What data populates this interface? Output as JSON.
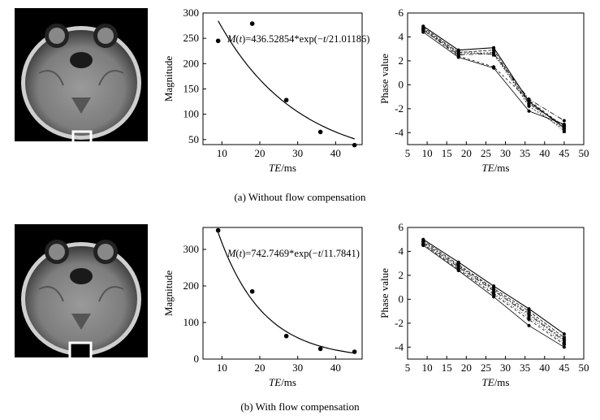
{
  "captions": {
    "a": "(a) Without flow compensation",
    "b": "(b) With flow compensation"
  },
  "chart_data": [
    {
      "id": "a-magnitude",
      "type": "scatter",
      "title": "",
      "xlabel_italic": "TE",
      "xlabel_unit": "/ms",
      "ylabel": "Magnitude",
      "xlim": [
        5,
        47
      ],
      "ylim": [
        40,
        300
      ],
      "xticks": [
        10,
        20,
        30,
        40
      ],
      "yticks": [
        50,
        100,
        150,
        200,
        250,
        300
      ],
      "points": [
        [
          9,
          245
        ],
        [
          18,
          279
        ],
        [
          27,
          128
        ],
        [
          36,
          65
        ],
        [
          45,
          39
        ]
      ],
      "fit": {
        "type": "exp",
        "amplitude": 436.52854,
        "tau": 21.01186,
        "x_from": 9,
        "x_to": 45
      },
      "equation": {
        "prefix": "M",
        "var1": "t",
        "middle": ")=436.52854*exp(−",
        "var2": "t",
        "suffix": "/21.01186)"
      }
    },
    {
      "id": "a-phase",
      "type": "line",
      "title": "",
      "xlabel_italic": "TE",
      "xlabel_unit": "/ms",
      "ylabel": "Phase value",
      "xlim": [
        5,
        50
      ],
      "ylim": [
        -5,
        6
      ],
      "xticks": [
        5,
        10,
        15,
        20,
        25,
        30,
        35,
        40,
        45,
        50
      ],
      "yticks": [
        -4,
        -2,
        0,
        2,
        4,
        6
      ],
      "x": [
        9,
        18,
        27,
        36,
        45
      ],
      "series": [
        {
          "name": "s1",
          "values": [
            4.9,
            2.9,
            3.1,
            -1.4,
            -3.6
          ]
        },
        {
          "name": "s2",
          "values": [
            4.8,
            2.7,
            2.9,
            -1.6,
            -3.4
          ]
        },
        {
          "name": "s3",
          "values": [
            4.7,
            2.6,
            2.7,
            -1.8,
            -3.7
          ]
        },
        {
          "name": "s4",
          "values": [
            4.6,
            2.5,
            2.6,
            -1.2,
            -3.0
          ]
        },
        {
          "name": "s5",
          "values": [
            4.5,
            2.8,
            2.5,
            -1.5,
            -3.9
          ]
        },
        {
          "name": "s6",
          "values": [
            4.6,
            2.4,
            1.5,
            -1.3,
            -3.5
          ]
        },
        {
          "name": "s7",
          "values": [
            4.4,
            2.3,
            1.4,
            -2.2,
            -3.3
          ]
        }
      ]
    },
    {
      "id": "b-magnitude",
      "type": "scatter",
      "title": "",
      "xlabel_italic": "TE",
      "xlabel_unit": "/ms",
      "ylabel": "Magnitude",
      "xlim": [
        5,
        47
      ],
      "ylim": [
        0,
        360
      ],
      "xticks": [
        10,
        20,
        30,
        40
      ],
      "yticks": [
        0,
        100,
        200,
        300
      ],
      "points": [
        [
          9,
          352
        ],
        [
          18,
          185
        ],
        [
          27,
          63
        ],
        [
          36,
          28
        ],
        [
          45,
          20
        ]
      ],
      "fit": {
        "type": "exp",
        "amplitude": 742.7469,
        "tau": 11.7841,
        "x_from": 9,
        "x_to": 45
      },
      "equation": {
        "prefix": "M",
        "var1": "t",
        "middle": ")=742.7469*exp(−",
        "var2": "t",
        "suffix": "/11.7841)"
      }
    },
    {
      "id": "b-phase",
      "type": "line",
      "title": "",
      "xlabel_italic": "TE",
      "xlabel_unit": "/ms",
      "ylabel": "Phase value",
      "xlim": [
        5,
        50
      ],
      "ylim": [
        -5,
        6
      ],
      "xticks": [
        5,
        10,
        15,
        20,
        25,
        30,
        35,
        40,
        45,
        50
      ],
      "yticks": [
        -4,
        -2,
        0,
        2,
        4,
        6
      ],
      "x": [
        9,
        18,
        27,
        36,
        45
      ],
      "series": [
        {
          "name": "s1",
          "values": [
            5.0,
            3.1,
            1.1,
            -0.8,
            -2.9
          ]
        },
        {
          "name": "s2",
          "values": [
            4.9,
            2.9,
            0.9,
            -1.0,
            -3.2
          ]
        },
        {
          "name": "s3",
          "values": [
            4.8,
            2.8,
            0.8,
            -1.2,
            -3.4
          ]
        },
        {
          "name": "s4",
          "values": [
            4.7,
            2.7,
            0.7,
            -1.3,
            -3.5
          ]
        },
        {
          "name": "s5",
          "values": [
            4.6,
            2.6,
            0.5,
            -1.5,
            -3.7
          ]
        },
        {
          "name": "s6",
          "values": [
            4.6,
            2.5,
            0.4,
            -1.7,
            -3.8
          ]
        },
        {
          "name": "s7",
          "values": [
            4.5,
            2.4,
            0.2,
            -2.2,
            -4.0
          ]
        }
      ]
    }
  ]
}
